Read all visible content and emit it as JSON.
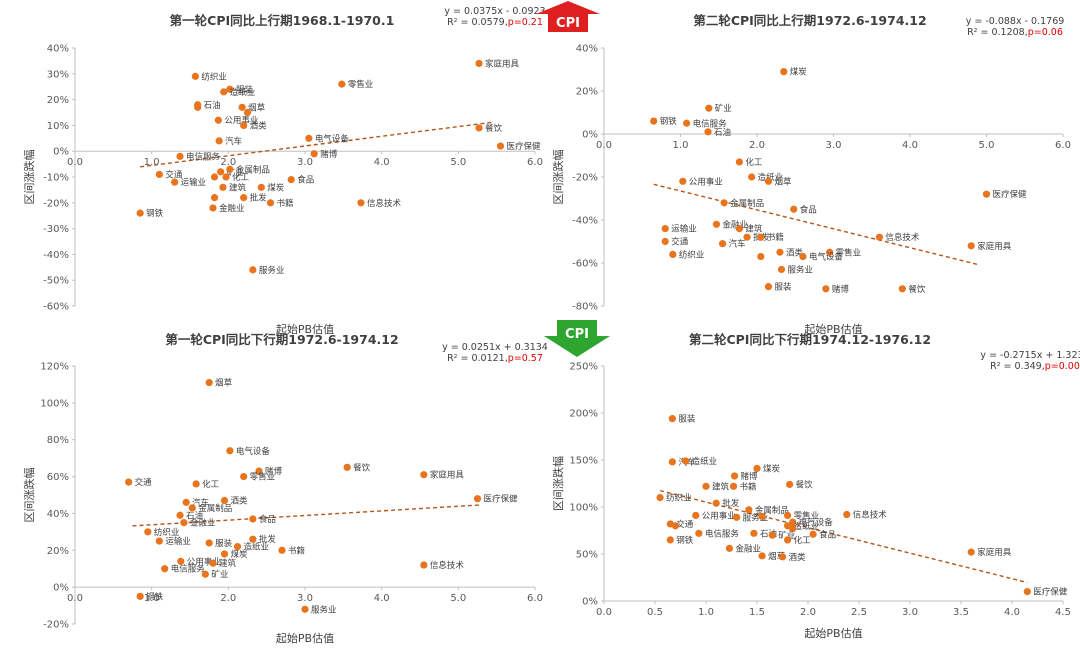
{
  "colors": {
    "point": "#E8741E",
    "trend": "#B5561A",
    "axis": "#BFBFBF",
    "up_arrow": "#E02020",
    "down_arrow": "#2EA52E",
    "p_value": "#E00000"
  },
  "arrows": {
    "up_label": "CPI",
    "down_label": "CPI"
  },
  "chart_data": [
    {
      "type": "scatter",
      "title": "第一轮CPI同比上行期1968.1-1970.1",
      "xlabel": "起始PB估值",
      "ylabel": "区间涨跌幅",
      "xlim": [
        0,
        6
      ],
      "ylim": [
        -60,
        40
      ],
      "x_ticks": [
        "0.0",
        "1.0",
        "2.0",
        "3.0",
        "4.0",
        "5.0",
        "6.0"
      ],
      "y_ticks": [
        "-60%",
        "-50%",
        "-40%",
        "-30%",
        "-20%",
        "-10%",
        "0%",
        "10%",
        "20%",
        "30%",
        "40%"
      ],
      "equation": "y = 0.0375x - 0.0923",
      "r2": "R² = 0.0579,",
      "p": "p=0.21",
      "trend": {
        "slope": 3.75,
        "intercept": -9.23,
        "x_range": [
          0.85,
          5.45
        ]
      },
      "points": [
        {
          "label": "家庭用具",
          "x": 5.27,
          "y": 34
        },
        {
          "label": "零售业",
          "x": 3.48,
          "y": 26
        },
        {
          "label": "纺织业",
          "x": 1.57,
          "y": 29
        },
        {
          "label": "服装",
          "x": 2.02,
          "y": 24
        },
        {
          "label": "造纸业",
          "x": 1.94,
          "y": 23
        },
        {
          "label": "石油",
          "x": 1.6,
          "y": 18
        },
        {
          "label": "",
          "x": 1.6,
          "y": 17
        },
        {
          "label": "烟草",
          "x": 2.18,
          "y": 17
        },
        {
          "label": "",
          "x": 2.25,
          "y": 15
        },
        {
          "label": "公用事业",
          "x": 1.87,
          "y": 12
        },
        {
          "label": "酒类",
          "x": 2.2,
          "y": 10
        },
        {
          "label": "餐饮",
          "x": 5.27,
          "y": 9
        },
        {
          "label": "汽车",
          "x": 1.88,
          "y": 4
        },
        {
          "label": "电气设备",
          "x": 3.05,
          "y": 5
        },
        {
          "label": "医疗保健",
          "x": 5.55,
          "y": 2
        },
        {
          "label": "电信服务",
          "x": 1.37,
          "y": -2
        },
        {
          "label": "赌博",
          "x": 3.12,
          "y": -1
        },
        {
          "label": "矿业",
          "x": 1.9,
          "y": -8
        },
        {
          "label": "金属制品",
          "x": 2.02,
          "y": -7
        },
        {
          "label": "交通",
          "x": 1.1,
          "y": -9
        },
        {
          "label": "化工",
          "x": 1.97,
          "y": -10
        },
        {
          "label": "食品",
          "x": 2.82,
          "y": -11
        },
        {
          "label": "运输业",
          "x": 1.3,
          "y": -12
        },
        {
          "label": "",
          "x": 1.82,
          "y": -10
        },
        {
          "label": "建筑",
          "x": 1.93,
          "y": -14
        },
        {
          "label": "煤炭",
          "x": 2.43,
          "y": -14
        },
        {
          "label": "批发",
          "x": 2.2,
          "y": -18
        },
        {
          "label": "书籍",
          "x": 2.55,
          "y": -20
        },
        {
          "label": "信息技术",
          "x": 3.73,
          "y": -20
        },
        {
          "label": "",
          "x": 1.82,
          "y": -18
        },
        {
          "label": "金融业",
          "x": 1.8,
          "y": -22
        },
        {
          "label": "钢铁",
          "x": 0.85,
          "y": -24
        },
        {
          "label": "服务业",
          "x": 2.32,
          "y": -46
        }
      ]
    },
    {
      "type": "scatter",
      "title": "第二轮CPI同比上行期1972.6-1974.12",
      "xlabel": "起始PB估值",
      "ylabel": "区间涨跌幅",
      "xlim": [
        0,
        6
      ],
      "ylim": [
        -80,
        40
      ],
      "x_ticks": [
        "0.0",
        "1.0",
        "2.0",
        "3.0",
        "4.0",
        "5.0",
        "6.0"
      ],
      "y_ticks": [
        "-80%",
        "-60%",
        "-40%",
        "-20%",
        "0%",
        "20%",
        "40%"
      ],
      "equation": "y = -0.088x - 0.1769",
      "r2": "R² = 0.1208,",
      "p": "p=0.06",
      "trend": {
        "slope": -8.8,
        "intercept": -17.69,
        "x_range": [
          0.65,
          4.9
        ]
      },
      "points": [
        {
          "label": "煤炭",
          "x": 2.35,
          "y": 29
        },
        {
          "label": "矿业",
          "x": 1.37,
          "y": 12
        },
        {
          "label": "钢铁",
          "x": 0.65,
          "y": 6
        },
        {
          "label": "电信服务",
          "x": 1.08,
          "y": 5
        },
        {
          "label": "石油",
          "x": 1.36,
          "y": 1
        },
        {
          "label": "化工",
          "x": 1.77,
          "y": -13
        },
        {
          "label": "造纸业",
          "x": 1.93,
          "y": -20
        },
        {
          "label": "烟草",
          "x": 2.15,
          "y": -22
        },
        {
          "label": "公用事业",
          "x": 1.03,
          "y": -22
        },
        {
          "label": "医疗保健",
          "x": 5.0,
          "y": -28
        },
        {
          "label": "金属制品",
          "x": 1.57,
          "y": -32
        },
        {
          "label": "食品",
          "x": 2.48,
          "y": -35
        },
        {
          "label": "金融业",
          "x": 1.47,
          "y": -42
        },
        {
          "label": "运输业",
          "x": 0.8,
          "y": -44
        },
        {
          "label": "建筑",
          "x": 1.77,
          "y": -44
        },
        {
          "label": "批发",
          "x": 1.87,
          "y": -48
        },
        {
          "label": "交通",
          "x": 0.8,
          "y": -50
        },
        {
          "label": "汽车",
          "x": 1.55,
          "y": -51
        },
        {
          "label": "书籍",
          "x": 2.05,
          "y": -48
        },
        {
          "label": "信息技术",
          "x": 3.6,
          "y": -48
        },
        {
          "label": "家庭用具",
          "x": 4.8,
          "y": -52
        },
        {
          "label": "酒类",
          "x": 2.3,
          "y": -55
        },
        {
          "label": "零售业",
          "x": 2.95,
          "y": -55
        },
        {
          "label": "纺织业",
          "x": 0.9,
          "y": -56
        },
        {
          "label": "",
          "x": 2.05,
          "y": -57
        },
        {
          "label": "电气设备",
          "x": 2.6,
          "y": -57
        },
        {
          "label": "服务业",
          "x": 2.32,
          "y": -63
        },
        {
          "label": "服装",
          "x": 2.15,
          "y": -71
        },
        {
          "label": "赌博",
          "x": 2.9,
          "y": -72
        },
        {
          "label": "餐饮",
          "x": 3.9,
          "y": -72
        }
      ]
    },
    {
      "type": "scatter",
      "title": "第一轮CPI同比下行期1972.6-1974.12",
      "xlabel": "起始PB估值",
      "ylabel": "区间涨跌幅",
      "xlim": [
        0,
        6
      ],
      "ylim": [
        -20,
        120
      ],
      "x_ticks": [
        "0.0",
        "1.0",
        "2.0",
        "3.0",
        "4.0",
        "5.0",
        "6.0"
      ],
      "y_ticks": [
        "-20%",
        "0%",
        "20%",
        "40%",
        "60%",
        "80%",
        "100%",
        "120%"
      ],
      "equation": "y = 0.0251x + 0.3134",
      "r2": "R² = 0.0121,",
      "p": "p=0.57",
      "trend": {
        "slope": 2.51,
        "intercept": 31.34,
        "x_range": [
          0.75,
          5.3
        ]
      },
      "points": [
        {
          "label": "烟草",
          "x": 1.75,
          "y": 111
        },
        {
          "label": "电气设备",
          "x": 2.02,
          "y": 74
        },
        {
          "label": "赌博",
          "x": 2.4,
          "y": 63
        },
        {
          "label": "餐饮",
          "x": 3.55,
          "y": 65
        },
        {
          "label": "零售业",
          "x": 2.2,
          "y": 60
        },
        {
          "label": "家庭用具",
          "x": 4.55,
          "y": 61
        },
        {
          "label": "交通",
          "x": 0.7,
          "y": 57
        },
        {
          "label": "化工",
          "x": 1.58,
          "y": 56
        },
        {
          "label": "医疗保健",
          "x": 5.25,
          "y": 48
        },
        {
          "label": "汽车",
          "x": 1.45,
          "y": 46
        },
        {
          "label": "酒类",
          "x": 1.95,
          "y": 47
        },
        {
          "label": "金属制品",
          "x": 1.53,
          "y": 43
        },
        {
          "label": "石油",
          "x": 1.37,
          "y": 39
        },
        {
          "label": "食品",
          "x": 2.32,
          "y": 37
        },
        {
          "label": "金融业",
          "x": 1.42,
          "y": 35
        },
        {
          "label": "纺织业",
          "x": 0.95,
          "y": 30
        },
        {
          "label": "批发",
          "x": 2.32,
          "y": 26
        },
        {
          "label": "运输业",
          "x": 1.1,
          "y": 25
        },
        {
          "label": "服装",
          "x": 1.75,
          "y": 24
        },
        {
          "label": "造纸业",
          "x": 2.12,
          "y": 22
        },
        {
          "label": "书籍",
          "x": 2.7,
          "y": 20
        },
        {
          "label": "煤炭",
          "x": 1.95,
          "y": 18
        },
        {
          "label": "公用事业",
          "x": 1.38,
          "y": 14
        },
        {
          "label": "建筑",
          "x": 1.8,
          "y": 13
        },
        {
          "label": "电信服务",
          "x": 1.17,
          "y": 10
        },
        {
          "label": "信息技术",
          "x": 4.55,
          "y": 12
        },
        {
          "label": "矿业",
          "x": 1.7,
          "y": 7
        },
        {
          "label": "钢铁",
          "x": 0.85,
          "y": -5
        },
        {
          "label": "服务业",
          "x": 3.0,
          "y": -12
        }
      ]
    },
    {
      "type": "scatter",
      "title": "第二轮CPI同比下行期1974.12-1976.12",
      "xlabel": "起始PB估值",
      "ylabel": "区间涨跌幅",
      "xlim": [
        0,
        4.5
      ],
      "ylim": [
        0,
        250
      ],
      "x_ticks": [
        "0.0",
        "0.5",
        "1.0",
        "1.5",
        "2.0",
        "2.5",
        "3.0",
        "3.5",
        "4.0",
        "4.5"
      ],
      "y_ticks": [
        "0%",
        "50%",
        "100%",
        "150%",
        "200%",
        "250%"
      ],
      "equation": "y = -0.2715x + 1.3236",
      "r2": "R² = 0.349",
      "p": ",p=0.00",
      "trend": {
        "slope": -27.15,
        "intercept": 132.36,
        "x_range": [
          0.55,
          4.15
        ]
      },
      "points": [
        {
          "label": "服装",
          "x": 0.67,
          "y": 194
        },
        {
          "label": "汽车",
          "x": 0.67,
          "y": 148
        },
        {
          "label": "造纸业",
          "x": 0.8,
          "y": 149
        },
        {
          "label": "煤炭",
          "x": 1.5,
          "y": 141
        },
        {
          "label": "赌博",
          "x": 1.28,
          "y": 133
        },
        {
          "label": "餐饮",
          "x": 1.82,
          "y": 124
        },
        {
          "label": "建筑",
          "x": 1.0,
          "y": 122
        },
        {
          "label": "书籍",
          "x": 1.27,
          "y": 122
        },
        {
          "label": "纺织业",
          "x": 0.55,
          "y": 110
        },
        {
          "label": "批发",
          "x": 1.1,
          "y": 104
        },
        {
          "label": "金属制品",
          "x": 1.42,
          "y": 97
        },
        {
          "label": "零售业",
          "x": 1.8,
          "y": 91
        },
        {
          "label": "信息技术",
          "x": 2.38,
          "y": 92
        },
        {
          "label": "公用事业",
          "x": 0.9,
          "y": 91
        },
        {
          "label": "服务业",
          "x": 1.3,
          "y": 89
        },
        {
          "label": "",
          "x": 1.55,
          "y": 90
        },
        {
          "label": "交通",
          "x": 0.65,
          "y": 82
        },
        {
          "label": "",
          "x": 0.7,
          "y": 80
        },
        {
          "label": "电气设备",
          "x": 1.85,
          "y": 84
        },
        {
          "label": "造纸业",
          "x": 1.8,
          "y": 80
        },
        {
          "label": "",
          "x": 1.85,
          "y": 77
        },
        {
          "label": "电信服务",
          "x": 0.93,
          "y": 72
        },
        {
          "label": "石油",
          "x": 1.47,
          "y": 72
        },
        {
          "label": "矿业",
          "x": 1.65,
          "y": 70
        },
        {
          "label": "食品",
          "x": 2.05,
          "y": 71
        },
        {
          "label": "化工",
          "x": 1.8,
          "y": 65
        },
        {
          "label": "钢铁",
          "x": 0.65,
          "y": 65
        },
        {
          "label": "金融业",
          "x": 1.23,
          "y": 56
        },
        {
          "label": "烟草",
          "x": 1.55,
          "y": 48
        },
        {
          "label": "酒类",
          "x": 1.75,
          "y": 47
        },
        {
          "label": "家庭用具",
          "x": 3.6,
          "y": 52
        },
        {
          "label": "医疗保健",
          "x": 4.15,
          "y": 10
        }
      ]
    }
  ]
}
